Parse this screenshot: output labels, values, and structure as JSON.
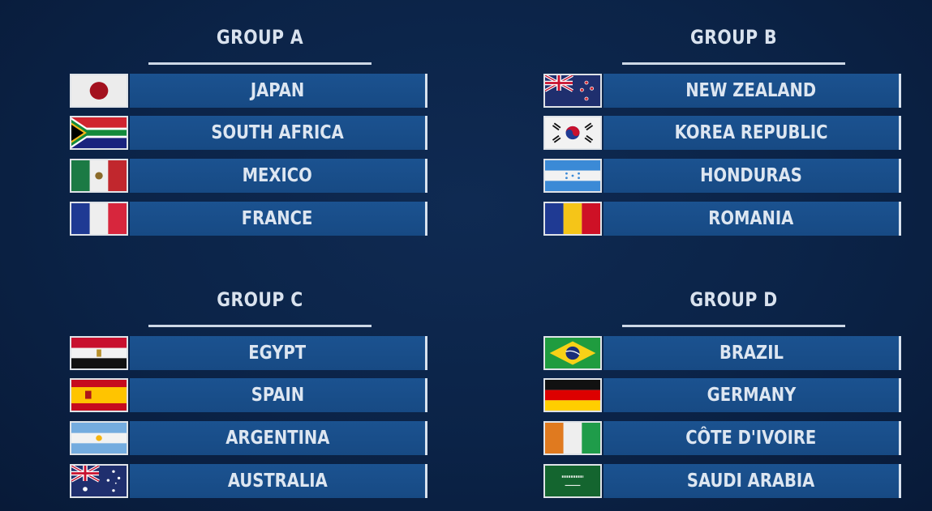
{
  "groups": [
    {
      "title": "GROUP A",
      "teams": [
        {
          "name": "JAPAN",
          "flag": "japan-flag"
        },
        {
          "name": "SOUTH AFRICA",
          "flag": "south-africa-flag"
        },
        {
          "name": "MEXICO",
          "flag": "mexico-flag"
        },
        {
          "name": "FRANCE",
          "flag": "france-flag"
        }
      ]
    },
    {
      "title": "GROUP B",
      "teams": [
        {
          "name": "NEW ZEALAND",
          "flag": "new-zealand-flag"
        },
        {
          "name": "KOREA REPUBLIC",
          "flag": "korea-republic-flag"
        },
        {
          "name": "HONDURAS",
          "flag": "honduras-flag"
        },
        {
          "name": "ROMANIA",
          "flag": "romania-flag"
        }
      ]
    },
    {
      "title": "GROUP C",
      "teams": [
        {
          "name": "EGYPT",
          "flag": "egypt-flag"
        },
        {
          "name": "SPAIN",
          "flag": "spain-flag"
        },
        {
          "name": "ARGENTINA",
          "flag": "argentina-flag"
        },
        {
          "name": "AUSTRALIA",
          "flag": "australia-flag"
        }
      ]
    },
    {
      "title": "GROUP D",
      "teams": [
        {
          "name": "BRAZIL",
          "flag": "brazil-flag"
        },
        {
          "name": "GERMANY",
          "flag": "germany-flag"
        },
        {
          "name": "CÔTE D'IVOIRE",
          "flag": "cote-divoire-flag"
        },
        {
          "name": "SAUDI ARABIA",
          "flag": "saudi-arabia-flag"
        }
      ]
    }
  ],
  "colors": {
    "background": "#0b2347",
    "bar": "#1a4f8a",
    "text": "#dde6f1"
  }
}
